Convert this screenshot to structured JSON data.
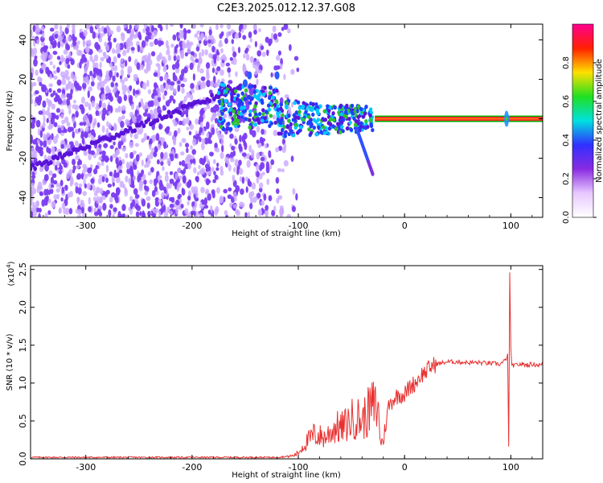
{
  "figure_title": "C2E3.2025.012.12.37.G08",
  "chart_data": [
    {
      "type": "heatmap",
      "xlabel": "Height of straight line (km)",
      "ylabel": "Frequency (Hz)",
      "xlim": [
        -352,
        130
      ],
      "ylim": [
        -50,
        48
      ],
      "xticks": [
        -300,
        -200,
        -100,
        0,
        100
      ],
      "yticks": [
        -40,
        -20,
        0,
        20,
        40
      ],
      "colorbar": {
        "label": "Normalized spectral amplitude",
        "range": [
          0,
          1
        ],
        "ticks": [
          0.0,
          0.2,
          0.4,
          0.6,
          0.8
        ],
        "colormap": [
          "#ffffff",
          "#e8c8ff",
          "#8a2be2",
          "#3030ff",
          "#00e0e0",
          "#20e020",
          "#ffe000",
          "#ff2000",
          "#ff0090"
        ]
      },
      "colors": {
        "noise": "#7b3cf0",
        "noise_light": "#c9a8ff",
        "band": "#00c8ff",
        "carrier": "#ff2a2a",
        "carrier_edge": "#00b000"
      },
      "features": {
        "noise_region_x": [
          -352,
          -100
        ],
        "diagonal_track": {
          "x": [
            -352,
            -160
          ],
          "y": [
            -25,
            15
          ]
        },
        "transition_cluster": {
          "x": [
            -175,
            -30
          ],
          "y": [
            -10,
            10
          ]
        },
        "secondary_branch": {
          "x": [
            -45,
            -30
          ],
          "y": [
            -5,
            -28
          ]
        },
        "carrier_line": {
          "x": [
            -28,
            130
          ],
          "y": 0
        },
        "spike_at": 96
      }
    },
    {
      "type": "line",
      "xlabel": "Height of straight line (km)",
      "ylabel": "SNR (10 * v/v)",
      "scale_label": "(x10",
      "scale_exp": "4",
      "xlim": [
        -352,
        130
      ],
      "ylim": [
        0,
        2.55
      ],
      "xticks": [
        -300,
        -200,
        -100,
        0,
        100
      ],
      "yticks": [
        0.0,
        0.5,
        1.0,
        1.5,
        2.0,
        2.5
      ],
      "series": [
        {
          "color": "#e83030",
          "x": [
            -352,
            -300,
            -250,
            -200,
            -150,
            -120,
            -105,
            -100,
            -95,
            -90,
            -85,
            -80,
            -75,
            -70,
            -65,
            -60,
            -55,
            -50,
            -45,
            -40,
            -35,
            -30,
            -25,
            -22,
            -20,
            -15,
            -10,
            -5,
            0,
            5,
            10,
            15,
            20,
            25,
            30,
            40,
            50,
            60,
            70,
            80,
            90,
            95,
            97,
            98,
            99,
            100,
            101,
            102,
            103,
            105,
            110,
            115,
            120,
            125,
            130
          ],
          "y": [
            0.02,
            0.02,
            0.02,
            0.02,
            0.02,
            0.02,
            0.04,
            0.08,
            0.18,
            0.25,
            0.32,
            0.3,
            0.28,
            0.35,
            0.42,
            0.4,
            0.45,
            0.52,
            0.55,
            0.5,
            0.6,
            0.7,
            0.65,
            0.2,
            0.25,
            0.7,
            0.8,
            0.85,
            0.85,
            0.95,
            1.0,
            1.1,
            1.15,
            1.22,
            1.25,
            1.28,
            1.28,
            1.27,
            1.27,
            1.26,
            1.25,
            1.3,
            1.38,
            0.15,
            2.45,
            1.45,
            1.2,
            1.25,
            1.22,
            1.24,
            1.25,
            1.24,
            1.25,
            1.24,
            1.24
          ]
        }
      ]
    }
  ]
}
